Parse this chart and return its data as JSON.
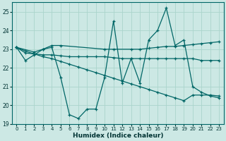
{
  "bg_color": "#cce8e4",
  "grid_color": "#aad4cc",
  "line_color": "#006666",
  "xlabel": "Humidex (Indice chaleur)",
  "ylim": [
    19,
    25.5
  ],
  "xlim": [
    -0.5,
    23.5
  ],
  "yticks": [
    19,
    20,
    21,
    22,
    23,
    24,
    25
  ],
  "xticks": [
    0,
    1,
    2,
    3,
    4,
    5,
    6,
    7,
    8,
    9,
    10,
    11,
    12,
    13,
    14,
    15,
    16,
    17,
    18,
    19,
    20,
    21,
    22,
    23
  ],
  "series": [
    {
      "x": [
        0,
        1,
        2,
        3,
        4,
        5,
        6,
        7,
        8,
        9,
        10,
        11,
        12,
        13,
        14,
        15,
        16,
        17,
        18,
        19,
        20,
        21,
        22,
        23
      ],
      "y": [
        23.1,
        22.4,
        22.7,
        23.0,
        23.1,
        21.5,
        19.5,
        19.3,
        19.8,
        19.8,
        21.5,
        24.5,
        21.2,
        22.5,
        21.2,
        23.5,
        24.0,
        25.2,
        23.2,
        23.5,
        21.0,
        20.7,
        20.5,
        20.4
      ]
    },
    {
      "x": [
        0,
        2,
        3,
        4,
        5,
        10,
        11,
        13,
        14,
        15,
        16,
        17,
        18,
        19,
        20,
        21,
        22,
        23
      ],
      "y": [
        23.1,
        22.85,
        23.0,
        23.2,
        23.2,
        23.0,
        23.0,
        23.0,
        23.0,
        23.05,
        23.1,
        23.15,
        23.15,
        23.2,
        23.25,
        23.3,
        23.35,
        23.4
      ]
    },
    {
      "x": [
        0,
        1,
        2,
        3,
        4,
        5,
        6,
        7,
        8,
        9,
        10,
        11,
        12,
        13,
        14,
        15,
        16,
        17,
        18,
        19,
        20,
        21,
        22,
        23
      ],
      "y": [
        23.1,
        22.8,
        22.75,
        22.7,
        22.7,
        22.65,
        22.6,
        22.6,
        22.6,
        22.6,
        22.6,
        22.55,
        22.5,
        22.5,
        22.5,
        22.5,
        22.5,
        22.5,
        22.5,
        22.5,
        22.5,
        22.4,
        22.4,
        22.4
      ]
    },
    {
      "x": [
        0,
        1,
        2,
        3,
        4,
        5,
        6,
        7,
        8,
        9,
        10,
        11,
        12,
        13,
        14,
        15,
        16,
        17,
        18,
        19,
        20,
        21,
        22,
        23
      ],
      "y": [
        23.1,
        22.9,
        22.75,
        22.6,
        22.5,
        22.35,
        22.2,
        22.05,
        21.9,
        21.75,
        21.6,
        21.45,
        21.3,
        21.15,
        21.0,
        20.85,
        20.7,
        20.55,
        20.4,
        20.25,
        20.55,
        20.55,
        20.55,
        20.5
      ]
    }
  ]
}
